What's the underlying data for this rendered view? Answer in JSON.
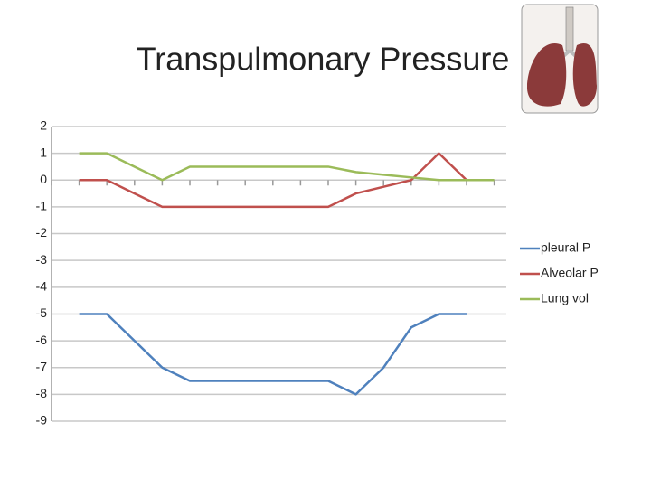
{
  "chart_data": {
    "type": "line",
    "title": "Transpulmonary Pressure",
    "categories": [
      null,
      null,
      null,
      null,
      null,
      null,
      null,
      null,
      null,
      null,
      null,
      null,
      null,
      null,
      null,
      null,
      null
    ],
    "series": [
      {
        "name": "pleural P",
        "color": "#4f81bd",
        "values": [
          null,
          -5,
          -5,
          -6,
          -7,
          -7.5,
          -7.5,
          -7.5,
          -7.5,
          -7.5,
          -7.5,
          -8,
          -7,
          -5.5,
          -5,
          -5,
          null
        ]
      },
      {
        "name": "Alveolar P",
        "color": "#c0504d",
        "values": [
          null,
          0,
          0,
          -0.5,
          -1,
          -1,
          -1,
          -1,
          -1,
          -1,
          -1,
          -0.5,
          -0.25,
          0,
          1,
          0,
          null
        ]
      },
      {
        "name": "Lung vol",
        "color": "#9bbb59",
        "values": [
          null,
          1,
          1,
          0.5,
          0,
          0.5,
          0.5,
          0.5,
          0.5,
          0.5,
          0.5,
          0.3,
          0.2,
          0.1,
          0,
          0,
          0
        ]
      }
    ],
    "ylim": [
      -9,
      2
    ],
    "yticks": [
      2,
      1,
      0,
      -1,
      -2,
      -3,
      -4,
      -5,
      -6,
      -7,
      -8,
      -9
    ],
    "grid": true,
    "legend": "right"
  }
}
